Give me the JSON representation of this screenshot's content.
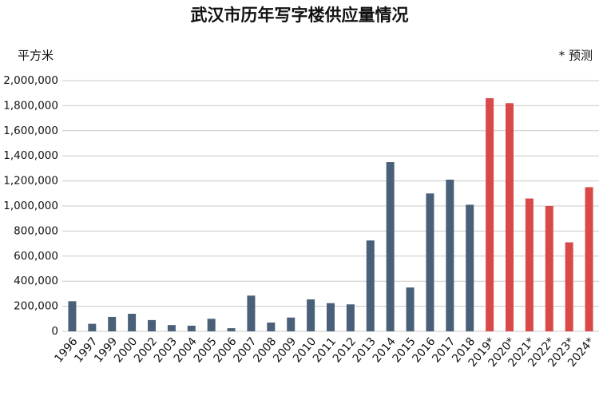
{
  "chart_data": {
    "type": "bar",
    "title": "武汉市历年写字楼供应量情况",
    "y_label": "平方米",
    "note": "* 预测",
    "categories": [
      "1996",
      "1997",
      "1999",
      "2000",
      "2002",
      "2003",
      "2004",
      "2005",
      "2006",
      "2007",
      "2008",
      "2009",
      "2010",
      "2011",
      "2012",
      "2013",
      "2014",
      "2015",
      "2016",
      "2017",
      "2018",
      "2019*",
      "2020*",
      "2021*",
      "2022*",
      "2023*",
      "2024*"
    ],
    "values": [
      240000,
      60000,
      115000,
      140000,
      90000,
      50000,
      45000,
      100000,
      25000,
      285000,
      70000,
      110000,
      255000,
      225000,
      215000,
      725000,
      1350000,
      350000,
      1100000,
      1210000,
      1010000,
      1860000,
      1820000,
      1060000,
      1000000,
      710000,
      1150000
    ],
    "colors": [
      "#4a6078",
      "#4a6078",
      "#4a6078",
      "#4a6078",
      "#4a6078",
      "#4a6078",
      "#4a6078",
      "#4a6078",
      "#4a6078",
      "#4a6078",
      "#4a6078",
      "#4a6078",
      "#4a6078",
      "#4a6078",
      "#4a6078",
      "#4a6078",
      "#4a6078",
      "#4a6078",
      "#4a6078",
      "#4a6078",
      "#4a6078",
      "#d9494a",
      "#d9494a",
      "#d9494a",
      "#d9494a",
      "#d9494a",
      "#d9494a"
    ],
    "ylim": [
      0,
      2000000
    ],
    "yticks": [
      0,
      {
        "value": 200000,
        "label": "200,000"
      },
      {
        "value": 400000,
        "label": "400,000"
      },
      {
        "value": 600000,
        "label": "600,000"
      },
      {
        "value": 800000,
        "label": "800,000"
      },
      {
        "value": 1000000,
        "label": "1,000,000"
      },
      {
        "value": 1200000,
        "label": "1,200,000"
      },
      {
        "value": 1400000,
        "label": "1,400,000"
      },
      {
        "value": 1600000,
        "label": "1,600,000"
      },
      {
        "value": 1800000,
        "label": "1,800,000"
      },
      {
        "value": 2000000,
        "label": "2,000,000"
      }
    ],
    "grid": true
  }
}
